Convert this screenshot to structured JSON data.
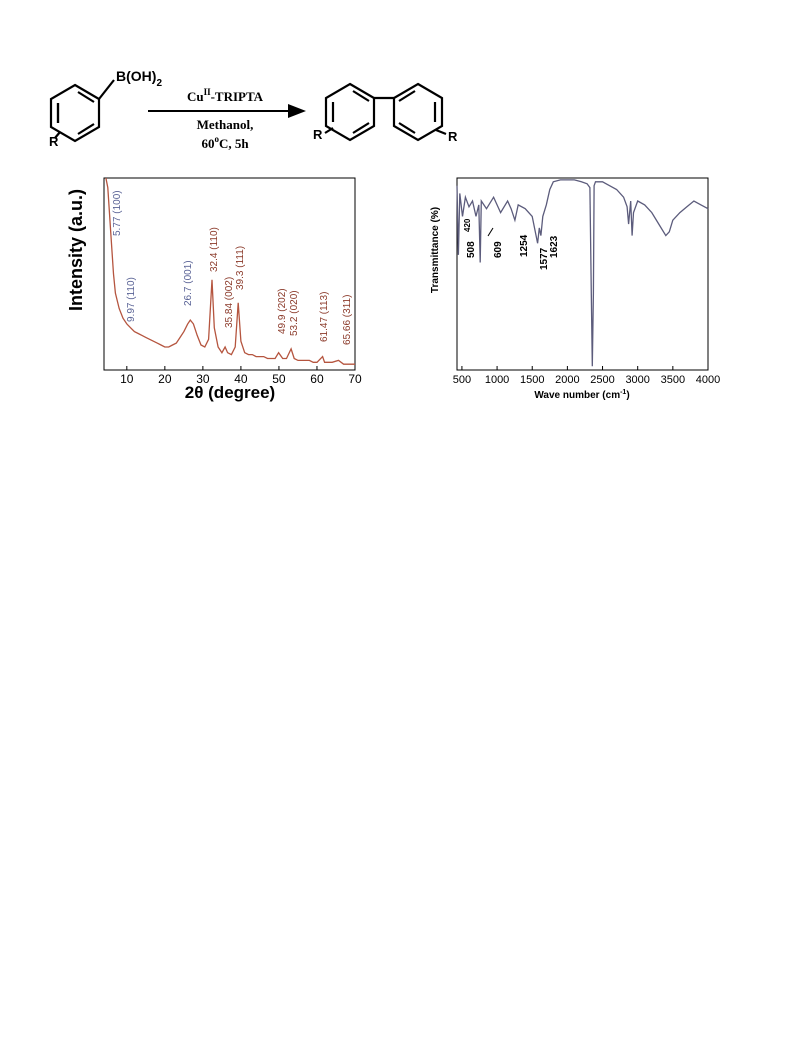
{
  "scheme": {
    "reactant": {
      "group": "B(OH)",
      "group_sub": "2",
      "substituent": "R"
    },
    "conditions": {
      "catalyst": "Cu",
      "catalyst_sup": "II",
      "catalyst_rest": "-TRIPTA",
      "solvent": "Methanol,",
      "temp": "60",
      "temp_sup": "o",
      "temp_rest": "C, 5h"
    },
    "product": {
      "substituents": [
        "R",
        "R"
      ]
    }
  },
  "chart_data": [
    {
      "type": "line",
      "y_label": "Intensity (a.u.)",
      "x_label": "2θ (degree)",
      "color": "#b5553f",
      "x": [
        4.5,
        5,
        5.77,
        6.5,
        7,
        8,
        9,
        10,
        11,
        12,
        13,
        14,
        15,
        16,
        17,
        18,
        19,
        20,
        21,
        22,
        23,
        24,
        25,
        26,
        26.7,
        27.5,
        28.5,
        29.5,
        30.5,
        31.5,
        32.4,
        33,
        34,
        35,
        35.84,
        36.5,
        37.5,
        38.5,
        39.3,
        40,
        41,
        42,
        43,
        44,
        45,
        46,
        47,
        48,
        49,
        49.9,
        51,
        52,
        53.2,
        54,
        55,
        56,
        57,
        58,
        59,
        60,
        61.47,
        62,
        63,
        64,
        65.66,
        67,
        68,
        69,
        70
      ],
      "values": [
        100,
        95,
        72,
        50,
        40,
        32,
        27,
        24,
        22,
        20,
        19,
        18,
        17,
        16,
        15,
        14,
        13,
        12,
        12,
        13,
        14,
        17,
        20,
        24,
        26,
        24,
        18,
        13,
        12,
        16,
        47,
        22,
        12,
        9,
        12,
        9,
        8,
        12,
        35,
        15,
        9,
        8,
        8,
        7,
        7,
        7,
        6,
        6,
        6,
        9,
        6,
        6,
        11,
        6,
        5,
        5,
        5,
        5,
        4,
        4,
        7,
        4,
        4,
        4,
        5,
        3,
        3,
        3,
        3
      ],
      "xlim": [
        4,
        70
      ],
      "xticks": [
        10,
        20,
        30,
        40,
        50,
        60,
        70
      ],
      "ylim": [
        0,
        100
      ],
      "annotations": [
        "5.77 (100)",
        "9.97 (110)",
        "26.7 (001)",
        "32.4 (110)",
        "35.84 (002)",
        "39.3 (111)",
        "49.9 (202)",
        "53.2 (020)",
        "61.47 (113)",
        "65.66 (311)"
      ],
      "annotation_colors": [
        "#5a6396",
        "#5a6396",
        "#5a6396",
        "#8b3a2a",
        "#8b3a2a",
        "#8b3a2a",
        "#8b3a2a",
        "#8b3a2a",
        "#8b3a2a",
        "#8b3a2a"
      ]
    },
    {
      "type": "line",
      "y_label": "Transmittance (%)",
      "x_label": "Wave number (cm",
      "x_label_sup": "-1",
      "x_label_end": ")",
      "color": "#5c5c7c",
      "x": [
        430,
        450,
        470,
        508,
        550,
        600,
        650,
        700,
        740,
        760,
        775,
        850,
        950,
        1050,
        1150,
        1200,
        1254,
        1300,
        1400,
        1500,
        1577,
        1600,
        1623,
        1650,
        1700,
        1750,
        1800,
        1900,
        2000,
        2100,
        2200,
        2280,
        2320,
        2340,
        2355,
        2370,
        2380,
        2400,
        2500,
        2600,
        2700,
        2800,
        2850,
        2870,
        2900,
        2920,
        2940,
        3000,
        3100,
        3200,
        3300,
        3400,
        3450,
        3500,
        3600,
        3700,
        3800,
        3900,
        4000
      ],
      "values": [
        96,
        60,
        92,
        80,
        90,
        85,
        88,
        80,
        86,
        56,
        88,
        84,
        90,
        82,
        88,
        84,
        78,
        86,
        84,
        80,
        66,
        74,
        70,
        80,
        86,
        94,
        98,
        99,
        99,
        99,
        98,
        97,
        95,
        40,
        2,
        40,
        96,
        98,
        98,
        96,
        94,
        90,
        85,
        76,
        88,
        70,
        82,
        88,
        86,
        82,
        76,
        70,
        72,
        78,
        82,
        85,
        88,
        86,
        84
      ],
      "xlim": [
        430,
        4000
      ],
      "xticks": [
        500,
        1000,
        1500,
        2000,
        2500,
        3000,
        3500,
        4000
      ],
      "ylim": [
        0,
        100
      ],
      "annotations": [
        "508",
        "420",
        "609",
        "1254",
        "1577",
        "1623"
      ],
      "annotation_colors": [
        "#000000",
        "#000000",
        "#000000",
        "#000000",
        "#000000",
        "#000000"
      ]
    }
  ]
}
